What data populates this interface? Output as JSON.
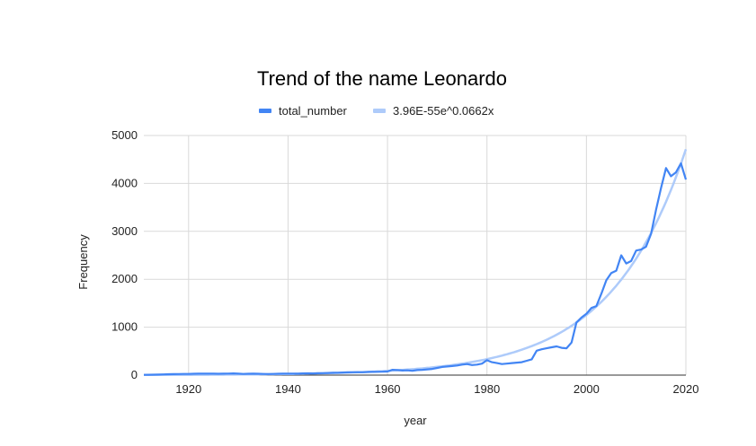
{
  "chart_data": {
    "type": "line",
    "title": "Trend of the name Leonardo",
    "xlabel": "year",
    "ylabel": "Frequency",
    "xlim": [
      1911,
      2020
    ],
    "ylim": [
      0,
      5000
    ],
    "x_ticks": [
      "1920",
      "1940",
      "1960",
      "1980",
      "2000",
      "2020"
    ],
    "y_ticks": [
      "0",
      "1000",
      "2000",
      "3000",
      "4000",
      "5000"
    ],
    "grid": true,
    "legend_position": "top",
    "series": [
      {
        "name": "total_number",
        "color": "#4285f4",
        "x": [
          1911,
          1912,
          1913,
          1914,
          1915,
          1916,
          1917,
          1918,
          1919,
          1920,
          1921,
          1922,
          1923,
          1924,
          1925,
          1926,
          1927,
          1928,
          1929,
          1930,
          1931,
          1932,
          1933,
          1934,
          1935,
          1936,
          1937,
          1938,
          1939,
          1940,
          1941,
          1942,
          1943,
          1944,
          1945,
          1946,
          1947,
          1948,
          1949,
          1950,
          1951,
          1952,
          1953,
          1954,
          1955,
          1956,
          1957,
          1958,
          1959,
          1960,
          1961,
          1962,
          1963,
          1964,
          1965,
          1966,
          1967,
          1968,
          1969,
          1970,
          1971,
          1972,
          1973,
          1974,
          1975,
          1976,
          1977,
          1978,
          1979,
          1980,
          1981,
          1982,
          1983,
          1984,
          1985,
          1986,
          1987,
          1988,
          1989,
          1990,
          1991,
          1992,
          1993,
          1994,
          1995,
          1996,
          1997,
          1998,
          1999,
          2000,
          2001,
          2002,
          2003,
          2004,
          2005,
          2006,
          2007,
          2008,
          2009,
          2010,
          2011,
          2012,
          2013,
          2014,
          2015,
          2016,
          2017,
          2018,
          2019,
          2020
        ],
        "y": [
          5,
          8,
          10,
          12,
          15,
          18,
          20,
          22,
          25,
          25,
          28,
          30,
          30,
          32,
          30,
          28,
          30,
          32,
          35,
          30,
          25,
          28,
          30,
          28,
          25,
          22,
          25,
          28,
          30,
          30,
          32,
          30,
          35,
          38,
          35,
          40,
          42,
          45,
          48,
          50,
          55,
          58,
          60,
          62,
          60,
          65,
          68,
          70,
          72,
          75,
          110,
          105,
          95,
          100,
          90,
          105,
          110,
          120,
          130,
          150,
          170,
          180,
          190,
          200,
          220,
          230,
          210,
          220,
          240,
          310,
          270,
          250,
          230,
          240,
          250,
          260,
          270,
          300,
          330,
          510,
          540,
          560,
          580,
          600,
          570,
          560,
          680,
          1100,
          1200,
          1280,
          1400,
          1440,
          1700,
          1980,
          2130,
          2180,
          2500,
          2330,
          2380,
          2600,
          2620,
          2680,
          2950,
          3450,
          3900,
          4320,
          4150,
          4230,
          4420,
          4080
        ]
      },
      {
        "name": "3.96E-55e^0.0662x",
        "color": "#aecbfa",
        "type": "exponential-trendline",
        "coefficient": 3.96e-55,
        "rate": 0.0662
      }
    ]
  }
}
